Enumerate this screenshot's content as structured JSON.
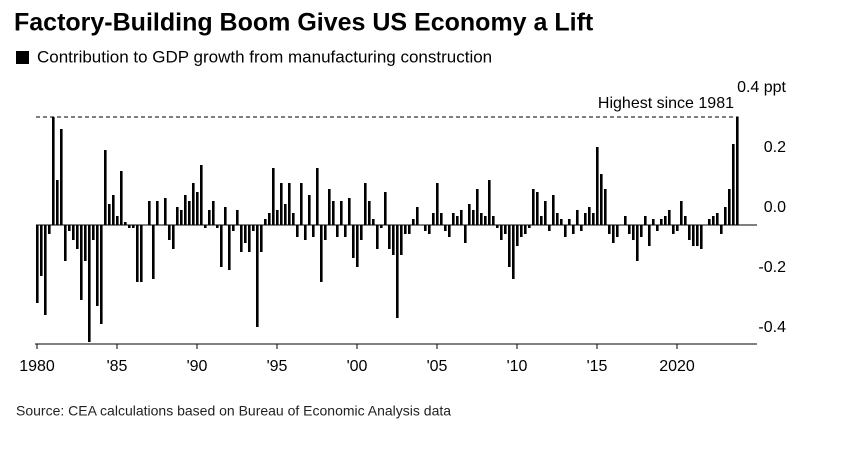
{
  "chart_data": {
    "type": "bar",
    "title": "Factory-Building Boom Gives US Economy a Lift",
    "subtitle": "Contribution to GDP growth from manufacturing construction",
    "source": "Source: CEA calculations based on Bureau of Economic Analysis data",
    "color": "#000000",
    "x": [
      1980,
      1980.25,
      1980.5,
      1980.75,
      1981,
      1981.25,
      1981.5,
      1981.75,
      1982,
      1982.25,
      1982.5,
      1982.75,
      1983,
      1983.25,
      1983.5,
      1983.75,
      1984,
      1984.25,
      1984.5,
      1984.75,
      1985,
      1985.25,
      1985.5,
      1985.75,
      1986,
      1986.25,
      1986.5,
      1986.75,
      1987,
      1987.25,
      1987.5,
      1987.75,
      1988,
      1988.25,
      1988.5,
      1988.75,
      1989,
      1989.25,
      1989.5,
      1989.75,
      1990,
      1990.25,
      1990.5,
      1990.75,
      1991,
      1991.25,
      1991.5,
      1991.75,
      1992,
      1992.25,
      1992.5,
      1992.75,
      1993,
      1993.25,
      1993.5,
      1993.75,
      1994,
      1994.25,
      1994.5,
      1994.75,
      1995,
      1995.25,
      1995.5,
      1995.75,
      1996,
      1996.25,
      1996.5,
      1996.75,
      1997,
      1997.25,
      1997.5,
      1997.75,
      1998,
      1998.25,
      1998.5,
      1998.75,
      1999,
      1999.25,
      1999.5,
      1999.75,
      2000,
      2000.25,
      2000.5,
      2000.75,
      2001,
      2001.25,
      2001.5,
      2001.75,
      2002,
      2002.25,
      2002.5,
      2002.75,
      2003,
      2003.25,
      2003.5,
      2003.75,
      2004,
      2004.25,
      2004.5,
      2004.75,
      2005,
      2005.25,
      2005.5,
      2005.75,
      2006,
      2006.25,
      2006.5,
      2006.75,
      2007,
      2007.25,
      2007.5,
      2007.75,
      2008,
      2008.25,
      2008.5,
      2008.75,
      2009,
      2009.25,
      2009.5,
      2009.75,
      2010,
      2010.25,
      2010.5,
      2010.75,
      2011,
      2011.25,
      2011.5,
      2011.75,
      2012,
      2012.25,
      2012.5,
      2012.75,
      2013,
      2013.25,
      2013.5,
      2013.75,
      2014,
      2014.25,
      2014.5,
      2014.75,
      2015,
      2015.25,
      2015.5,
      2015.75,
      2016,
      2016.25,
      2016.5,
      2016.75,
      2017,
      2017.25,
      2017.5,
      2017.75,
      2018,
      2018.25,
      2018.5,
      2018.75,
      2019,
      2019.25,
      2019.5,
      2019.75,
      2020,
      2020.25,
      2020.5,
      2020.75,
      2021,
      2021.25,
      2021.5,
      2021.75,
      2022,
      2022.25,
      2022.5,
      2022.75,
      2023,
      2023.25,
      2023.5,
      2023.75
    ],
    "values": [
      -0.26,
      -0.17,
      -0.3,
      -0.03,
      0.36,
      0.15,
      0.32,
      -0.12,
      -0.02,
      -0.05,
      -0.08,
      -0.25,
      -0.12,
      -0.39,
      -0.05,
      -0.27,
      -0.33,
      0.25,
      0.07,
      0.1,
      0.03,
      0.18,
      0.01,
      -0.01,
      -0.01,
      -0.19,
      -0.19,
      0.0,
      0.08,
      -0.18,
      0.08,
      0.0,
      0.09,
      -0.05,
      -0.08,
      0.06,
      0.05,
      0.1,
      0.08,
      0.14,
      0.11,
      0.2,
      -0.01,
      0.05,
      0.08,
      -0.01,
      -0.14,
      0.06,
      -0.15,
      -0.02,
      0.05,
      -0.09,
      -0.06,
      -0.09,
      -0.02,
      -0.34,
      -0.09,
      0.02,
      0.04,
      0.19,
      0.05,
      0.14,
      0.07,
      0.14,
      0.04,
      -0.04,
      0.14,
      -0.05,
      0.1,
      -0.04,
      0.19,
      -0.19,
      -0.05,
      0.12,
      0.08,
      -0.04,
      0.08,
      -0.04,
      0.09,
      -0.11,
      -0.14,
      -0.05,
      0.14,
      0.08,
      0.02,
      -0.08,
      -0.01,
      0.11,
      -0.08,
      -0.1,
      -0.31,
      -0.1,
      -0.03,
      -0.03,
      0.02,
      0.06,
      0.0,
      -0.02,
      -0.03,
      0.04,
      0.14,
      0.04,
      -0.02,
      -0.04,
      0.04,
      0.03,
      0.05,
      -0.06,
      0.07,
      0.05,
      0.12,
      0.04,
      0.03,
      0.15,
      0.03,
      -0.01,
      -0.05,
      -0.03,
      -0.14,
      -0.18,
      -0.07,
      -0.04,
      -0.03,
      -0.01,
      0.12,
      0.11,
      0.03,
      0.08,
      -0.02,
      0.1,
      0.04,
      0.02,
      -0.04,
      0.02,
      -0.03,
      0.05,
      -0.02,
      0.04,
      0.06,
      0.04,
      0.26,
      0.17,
      0.12,
      -0.03,
      -0.06,
      -0.04,
      0.0,
      0.03,
      -0.03,
      -0.05,
      -0.12,
      -0.04,
      0.03,
      -0.07,
      0.02,
      -0.02,
      0.02,
      0.03,
      0.05,
      -0.03,
      -0.02,
      0.08,
      0.03,
      -0.05,
      -0.07,
      -0.07,
      -0.08,
      0.0,
      0.02,
      0.03,
      0.04,
      -0.03,
      0.06,
      0.12,
      0.27,
      0.36
    ],
    "xlim": [
      1980,
      2024.5
    ],
    "xticks": [
      1980,
      {
        "value": 1985,
        "label": "'85"
      },
      {
        "value": 1990,
        "label": "'90"
      },
      {
        "value": 1995,
        "label": "'95"
      },
      {
        "value": 2000,
        "label": "'00"
      },
      {
        "value": 2005,
        "label": "'05"
      },
      {
        "value": 2010,
        "label": "'10"
      },
      {
        "value": 2015,
        "label": "'15"
      },
      2020
    ],
    "ylim": [
      -0.4,
      0.4
    ],
    "yticks": [
      -0.4,
      -0.2,
      {
        "value": 0,
        "label": "0.0"
      },
      0.2,
      {
        "value": 0.4,
        "label": "0.4 ppt"
      }
    ],
    "grid": false,
    "annotation": {
      "text": "Highest since 1981",
      "value": 0.36
    }
  }
}
